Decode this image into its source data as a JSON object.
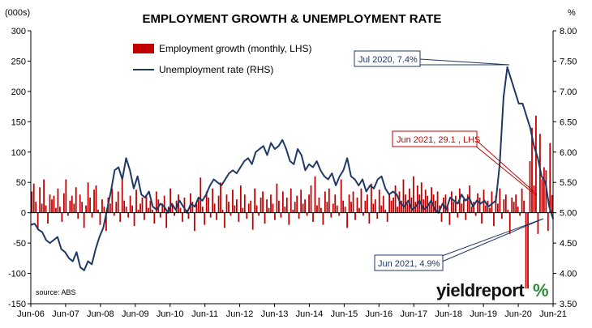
{
  "chart_data": {
    "type": "bar+line",
    "title": "EMPLOYMENT GROWTH & UNEMPLOYMENT RATE",
    "left_axis_unit": "(000s)",
    "right_axis_unit": "%",
    "left_ylim": [
      -150,
      300
    ],
    "right_ylim": [
      3.5,
      8.0
    ],
    "left_ticks": [
      -150,
      -100,
      -50,
      0,
      50,
      100,
      150,
      200,
      250,
      300
    ],
    "right_ticks": [
      "3.50",
      "4.00",
      "4.50",
      "5.00",
      "5.50",
      "6.00",
      "6.50",
      "7.00",
      "7.50",
      "8.00"
    ],
    "x_ticks": [
      "Jun-06",
      "Jun-07",
      "Jun-08",
      "Jun-09",
      "Jun-10",
      "Jun-11",
      "Jun-12",
      "Jun-13",
      "Jun-14",
      "Jun-15",
      "Jun-16",
      "Jun-17",
      "Jun-18",
      "Jun-19",
      "Jun-20",
      "Jun-21"
    ],
    "x_start": "Jun-06",
    "x_end": "Jun-21",
    "grid": false,
    "legend_position": "top-center",
    "series": [
      {
        "name": "Employment growth (monthly, LHS)",
        "kind": "bar",
        "axis": "left",
        "values": [
          35,
          48,
          18,
          -28,
          42,
          15,
          55,
          12,
          -18,
          30,
          22,
          28,
          8,
          40,
          10,
          -15,
          32,
          55,
          -5,
          20,
          28,
          15,
          42,
          -10,
          30,
          18,
          -25,
          12,
          50,
          25,
          -8,
          38,
          45,
          5,
          -20,
          22,
          10,
          -30,
          25,
          15,
          40,
          -5,
          18,
          35,
          -15,
          55,
          20,
          10,
          -8,
          28,
          12,
          -22,
          38,
          5,
          15,
          25,
          -12,
          30,
          8,
          20,
          5,
          -18,
          35,
          22,
          -8,
          15,
          28,
          -25,
          10,
          40,
          12,
          -5,
          20,
          30,
          8,
          -15,
          25,
          5,
          -10,
          32,
          18,
          -30,
          15,
          22,
          58,
          10,
          -20,
          35,
          25,
          -8,
          40,
          15,
          -12,
          28,
          50,
          5,
          -25,
          30,
          18,
          -5,
          38,
          12,
          22,
          -15,
          45,
          8,
          30,
          -10,
          15,
          20,
          -28,
          40,
          12,
          -5,
          25,
          35,
          -18,
          22,
          8,
          30,
          15,
          -12,
          48,
          20,
          -8,
          35,
          10,
          25,
          -20,
          40,
          5,
          18,
          28,
          -10,
          38,
          15,
          22,
          -5,
          30,
          45,
          -15,
          60,
          12,
          25,
          8,
          -20,
          35,
          18,
          40,
          -8,
          15,
          30,
          12,
          -5,
          55,
          20,
          10,
          -25,
          30,
          18,
          35,
          -12,
          25,
          8,
          40,
          -5,
          20,
          30,
          -18,
          48,
          15,
          22,
          -10,
          38,
          12,
          28,
          5,
          -15,
          32,
          20,
          25,
          45,
          10,
          35,
          20,
          55,
          30,
          15,
          40,
          25,
          60,
          18,
          45,
          30,
          50,
          22,
          38,
          28,
          15,
          42,
          30,
          20,
          35,
          12,
          -15,
          25,
          30,
          10,
          -20,
          35,
          18,
          28,
          -8,
          40,
          15,
          22,
          -12,
          30,
          45,
          10,
          18,
          -5,
          32,
          25,
          -18,
          38,
          12,
          20,
          8,
          35,
          -22,
          28,
          15,
          40,
          -10,
          22,
          30,
          5,
          -35,
          25,
          18,
          30,
          10,
          -5,
          40,
          20,
          -125,
          -125,
          85,
          140,
          45,
          160,
          -35,
          130,
          55,
          75,
          70,
          -30,
          115,
          29.1
        ]
      },
      {
        "name": "Unemployment rate (RHS)",
        "kind": "line",
        "axis": "right",
        "points": [
          [
            0,
            4.8
          ],
          [
            2,
            4.82
          ],
          [
            4,
            4.72
          ],
          [
            6,
            4.68
          ],
          [
            8,
            4.55
          ],
          [
            10,
            4.5
          ],
          [
            12,
            4.55
          ],
          [
            14,
            4.6
          ],
          [
            16,
            4.4
          ],
          [
            18,
            4.35
          ],
          [
            20,
            4.25
          ],
          [
            22,
            4.2
          ],
          [
            24,
            4.35
          ],
          [
            26,
            4.1
          ],
          [
            28,
            4.05
          ],
          [
            30,
            4.2
          ],
          [
            32,
            4.15
          ],
          [
            34,
            4.4
          ],
          [
            36,
            4.6
          ],
          [
            38,
            4.75
          ],
          [
            40,
            5.05
          ],
          [
            42,
            5.35
          ],
          [
            44,
            5.7
          ],
          [
            46,
            5.75
          ],
          [
            48,
            5.55
          ],
          [
            50,
            5.9
          ],
          [
            52,
            5.7
          ],
          [
            54,
            5.4
          ],
          [
            56,
            5.6
          ],
          [
            58,
            5.3
          ],
          [
            60,
            5.25
          ],
          [
            62,
            5.35
          ],
          [
            64,
            5.1
          ],
          [
            66,
            5.05
          ],
          [
            68,
            5.15
          ],
          [
            70,
            5.1
          ],
          [
            72,
            5.0
          ],
          [
            74,
            5.15
          ],
          [
            76,
            5.05
          ],
          [
            78,
            5.2
          ],
          [
            80,
            5.1
          ],
          [
            82,
            5.0
          ],
          [
            84,
            5.15
          ],
          [
            86,
            5.1
          ],
          [
            88,
            5.25
          ],
          [
            90,
            5.2
          ],
          [
            92,
            5.3
          ],
          [
            94,
            5.45
          ],
          [
            96,
            5.55
          ],
          [
            98,
            5.5
          ],
          [
            100,
            5.45
          ],
          [
            102,
            5.55
          ],
          [
            104,
            5.65
          ],
          [
            106,
            5.7
          ],
          [
            108,
            5.65
          ],
          [
            110,
            5.75
          ],
          [
            112,
            5.85
          ],
          [
            114,
            5.9
          ],
          [
            116,
            5.8
          ],
          [
            118,
            6.0
          ],
          [
            120,
            6.05
          ],
          [
            122,
            6.1
          ],
          [
            124,
            5.95
          ],
          [
            126,
            6.15
          ],
          [
            128,
            6.05
          ],
          [
            130,
            6.1
          ],
          [
            132,
            6.2
          ],
          [
            134,
            6.05
          ],
          [
            136,
            5.85
          ],
          [
            138,
            5.8
          ],
          [
            140,
            6.05
          ],
          [
            142,
            5.95
          ],
          [
            144,
            5.7
          ],
          [
            146,
            5.8
          ],
          [
            148,
            5.75
          ],
          [
            150,
            5.85
          ],
          [
            152,
            5.7
          ],
          [
            154,
            5.6
          ],
          [
            156,
            5.55
          ],
          [
            158,
            5.65
          ],
          [
            160,
            5.45
          ],
          [
            162,
            5.6
          ],
          [
            164,
            5.7
          ],
          [
            166,
            5.9
          ],
          [
            168,
            5.6
          ],
          [
            170,
            5.55
          ],
          [
            172,
            5.45
          ],
          [
            174,
            5.55
          ],
          [
            176,
            5.35
          ],
          [
            178,
            5.45
          ],
          [
            180,
            5.4
          ],
          [
            182,
            5.55
          ],
          [
            184,
            5.6
          ],
          [
            186,
            5.4
          ],
          [
            188,
            5.3
          ],
          [
            190,
            5.35
          ],
          [
            192,
            5.3
          ],
          [
            194,
            5.15
          ],
          [
            196,
            5.1
          ],
          [
            198,
            5.2
          ],
          [
            200,
            5.05
          ],
          [
            202,
            5.1
          ],
          [
            204,
            5.2
          ],
          [
            206,
            5.05
          ],
          [
            208,
            5.1
          ],
          [
            210,
            5.2
          ],
          [
            212,
            5.05
          ],
          [
            214,
            5.0
          ],
          [
            216,
            5.15
          ],
          [
            218,
            5.05
          ],
          [
            220,
            5.25
          ],
          [
            222,
            5.2
          ],
          [
            224,
            5.15
          ],
          [
            226,
            5.3
          ],
          [
            228,
            5.2
          ],
          [
            230,
            5.25
          ],
          [
            232,
            5.1
          ],
          [
            234,
            5.2
          ],
          [
            236,
            5.15
          ],
          [
            238,
            5.2
          ],
          [
            240,
            5.1
          ],
          [
            242,
            5.15
          ],
          [
            244,
            5.2
          ],
          [
            246,
            5.8
          ],
          [
            248,
            6.9
          ],
          [
            250,
            7.4
          ],
          [
            252,
            7.2
          ],
          [
            254,
            7.0
          ],
          [
            256,
            6.8
          ],
          [
            258,
            6.8
          ],
          [
            260,
            6.6
          ],
          [
            262,
            6.4
          ],
          [
            264,
            6.1
          ],
          [
            266,
            5.9
          ],
          [
            268,
            5.6
          ],
          [
            270,
            5.5
          ],
          [
            272,
            5.1
          ],
          [
            274,
            4.9
          ]
        ]
      }
    ],
    "annotations": [
      {
        "text": "Jul 2020, 7.4%",
        "color": "#1F3864"
      },
      {
        "text": "Jun 2021, 29.1 , LHS",
        "color": "#C00000"
      },
      {
        "text": "Jun 2021, 4.9%",
        "color": "#1F3864"
      }
    ],
    "source": "source: ABS"
  },
  "brand": {
    "name": "yieldreport",
    "mark": "%"
  },
  "colors": {
    "bar": "#C00000",
    "line": "#1F3864",
    "axis": "#000000",
    "brand_green": "#2E8B3A",
    "brand_red": "#C00000"
  }
}
